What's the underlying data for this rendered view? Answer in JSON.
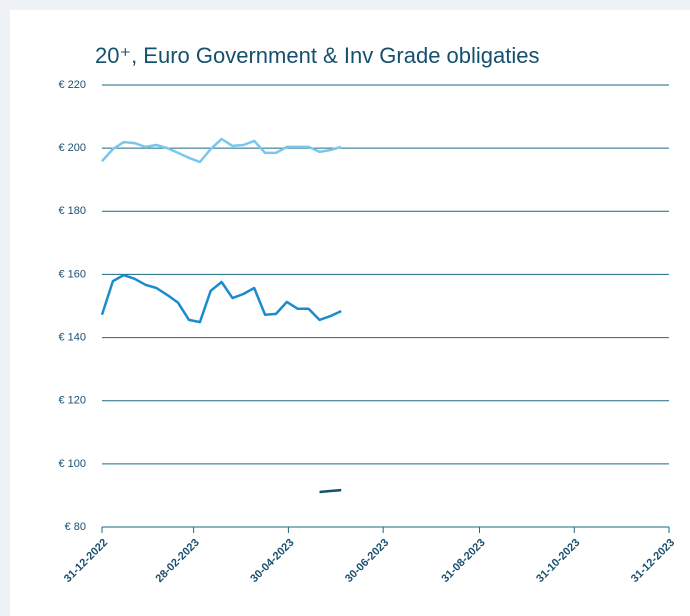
{
  "chart_data": {
    "type": "line",
    "title": "20⁺, Euro Government & Inv Grade obligaties",
    "x": [
      "2022-12-31",
      "2023-01-07",
      "2023-01-14",
      "2023-01-21",
      "2023-01-28",
      "2023-02-04",
      "2023-02-11",
      "2023-02-18",
      "2023-02-25",
      "2023-03-04",
      "2023-03-11",
      "2023-03-18",
      "2023-03-25",
      "2023-04-01",
      "2023-04-08",
      "2023-04-15",
      "2023-04-22",
      "2023-04-29",
      "2023-05-06",
      "2023-05-13",
      "2023-05-20",
      "2023-05-27",
      "2023-06-03"
    ],
    "series": [
      {
        "color": "#7cc6ec",
        "values": [
          195.9,
          199.7,
          201.9,
          201.6,
          200.4,
          201.0,
          200.0,
          198.5,
          196.9,
          195.6,
          199.7,
          202.9,
          200.7,
          201.0,
          202.3,
          198.5,
          198.5,
          200.4,
          200.4,
          200.4,
          198.8,
          199.4,
          200.4
        ]
      },
      {
        "color": "#1a8ccc",
        "values": [
          147.2,
          157.9,
          159.8,
          158.6,
          156.7,
          155.7,
          153.5,
          151.0,
          145.6,
          144.9,
          154.8,
          157.6,
          152.5,
          153.8,
          155.7,
          147.2,
          147.5,
          151.3,
          149.1,
          149.1,
          145.6,
          146.8,
          148.4
        ]
      },
      {
        "color": "#15506e",
        "values": [
          null,
          null,
          null,
          null,
          null,
          null,
          null,
          null,
          null,
          null,
          null,
          null,
          null,
          null,
          null,
          null,
          null,
          null,
          null,
          null,
          91.1,
          91.4,
          91.7
        ]
      }
    ],
    "xlim": [
      "2022-12-31",
      "2023-12-31"
    ],
    "xticks": [
      {
        "value": "2022-12-31",
        "label": "31-12-2022"
      },
      {
        "value": "2023-02-28",
        "label": "28-02-2023"
      },
      {
        "value": "2023-04-30",
        "label": "30-04-2023"
      },
      {
        "value": "2023-06-30",
        "label": "30-06-2023"
      },
      {
        "value": "2023-08-31",
        "label": "31-08-2023"
      },
      {
        "value": "2023-10-31",
        "label": "31-10-2023"
      },
      {
        "value": "2023-12-31",
        "label": "31-12-2023"
      }
    ],
    "ylim": [
      80,
      220
    ],
    "yticks": [
      {
        "value": 80,
        "label": "€ 80"
      },
      {
        "value": 100,
        "label": "€ 100"
      },
      {
        "value": 120,
        "label": "€ 120"
      },
      {
        "value": 140,
        "label": "€ 140"
      },
      {
        "value": 160,
        "label": "€ 160"
      },
      {
        "value": 180,
        "label": "€ 180"
      },
      {
        "value": 200,
        "label": "€ 200"
      },
      {
        "value": 220,
        "label": "€ 220"
      }
    ],
    "grid": true
  }
}
